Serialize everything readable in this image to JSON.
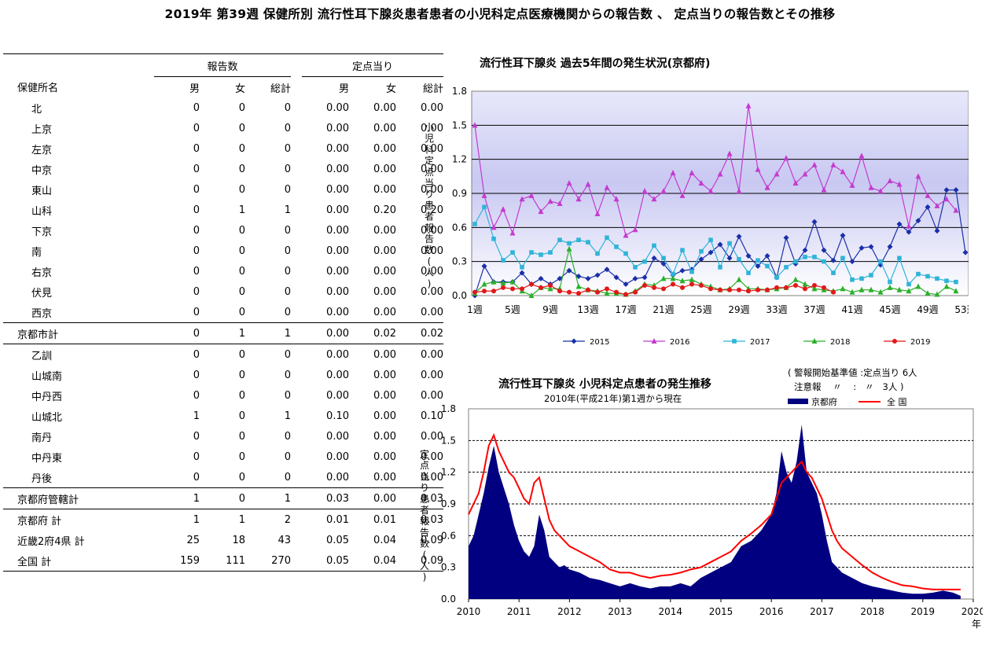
{
  "page_title": "2019年 第39週 保健所別 流行性耳下腺炎患者患者の小児科定点医療機関からの報告数 、 定点当りの報告数とその推移",
  "table": {
    "name_header": "保健所名",
    "group_reports": "報告数",
    "group_rate": "定点当り",
    "sub_headers": [
      "男",
      "女",
      "総計",
      "男",
      "女",
      "総計"
    ],
    "rows": [
      {
        "name": "北",
        "indent": true,
        "sep": false,
        "values": [
          "0",
          "0",
          "0",
          "0.00",
          "0.00",
          "0.00"
        ]
      },
      {
        "name": "上京",
        "indent": true,
        "sep": false,
        "values": [
          "0",
          "0",
          "0",
          "0.00",
          "0.00",
          "0.00"
        ]
      },
      {
        "name": "左京",
        "indent": true,
        "sep": false,
        "values": [
          "0",
          "0",
          "0",
          "0.00",
          "0.00",
          "0.00"
        ]
      },
      {
        "name": "中京",
        "indent": true,
        "sep": false,
        "values": [
          "0",
          "0",
          "0",
          "0.00",
          "0.00",
          "0.00"
        ]
      },
      {
        "name": "東山",
        "indent": true,
        "sep": false,
        "values": [
          "0",
          "0",
          "0",
          "0.00",
          "0.00",
          "0.00"
        ]
      },
      {
        "name": "山科",
        "indent": true,
        "sep": false,
        "values": [
          "0",
          "1",
          "1",
          "0.00",
          "0.20",
          "0.20"
        ]
      },
      {
        "name": "下京",
        "indent": true,
        "sep": false,
        "values": [
          "0",
          "0",
          "0",
          "0.00",
          "0.00",
          "0.00"
        ]
      },
      {
        "name": "南",
        "indent": true,
        "sep": false,
        "values": [
          "0",
          "0",
          "0",
          "0.00",
          "0.00",
          "0.00"
        ]
      },
      {
        "name": "右京",
        "indent": true,
        "sep": false,
        "values": [
          "0",
          "0",
          "0",
          "0.00",
          "0.00",
          "0.00"
        ]
      },
      {
        "name": "伏見",
        "indent": true,
        "sep": false,
        "values": [
          "0",
          "0",
          "0",
          "0.00",
          "0.00",
          "0.00"
        ]
      },
      {
        "name": "西京",
        "indent": true,
        "sep": false,
        "values": [
          "0",
          "0",
          "0",
          "0.00",
          "0.00",
          "0.00"
        ]
      },
      {
        "name": "京都市計",
        "indent": false,
        "sep": true,
        "values": [
          "0",
          "1",
          "1",
          "0.00",
          "0.02",
          "0.02"
        ]
      },
      {
        "name": "乙訓",
        "indent": true,
        "sep": true,
        "values": [
          "0",
          "0",
          "0",
          "0.00",
          "0.00",
          "0.00"
        ]
      },
      {
        "name": "山城南",
        "indent": true,
        "sep": false,
        "values": [
          "0",
          "0",
          "0",
          "0.00",
          "0.00",
          "0.00"
        ]
      },
      {
        "name": "中丹西",
        "indent": true,
        "sep": false,
        "values": [
          "0",
          "0",
          "0",
          "0.00",
          "0.00",
          "0.00"
        ]
      },
      {
        "name": "山城北",
        "indent": true,
        "sep": false,
        "values": [
          "1",
          "0",
          "1",
          "0.10",
          "0.00",
          "0.10"
        ]
      },
      {
        "name": "南丹",
        "indent": true,
        "sep": false,
        "values": [
          "0",
          "0",
          "0",
          "0.00",
          "0.00",
          "0.00"
        ]
      },
      {
        "name": "中丹東",
        "indent": true,
        "sep": false,
        "values": [
          "0",
          "0",
          "0",
          "0.00",
          "0.00",
          "0.00"
        ]
      },
      {
        "name": "丹後",
        "indent": true,
        "sep": false,
        "values": [
          "0",
          "0",
          "0",
          "0.00",
          "0.00",
          "0.00"
        ]
      },
      {
        "name": "京都府管轄計",
        "indent": false,
        "sep": true,
        "values": [
          "1",
          "0",
          "1",
          "0.03",
          "0.00",
          "0.03"
        ]
      },
      {
        "name": "京都府 計",
        "indent": false,
        "sep": true,
        "values": [
          "1",
          "1",
          "2",
          "0.01",
          "0.01",
          "0.03"
        ]
      },
      {
        "name": "近畿2府4県 計",
        "indent": false,
        "sep": false,
        "values": [
          "25",
          "18",
          "43",
          "0.05",
          "0.04",
          "0.09"
        ]
      },
      {
        "name": "全国 計",
        "indent": false,
        "sep": false,
        "values": [
          "159",
          "111",
          "270",
          "0.05",
          "0.04",
          "0.09"
        ]
      }
    ]
  },
  "chart_data": [
    {
      "type": "line",
      "title": "流行性耳下腺炎 過去5年間の発生状況(京都府)",
      "ylabel": "小児科定点当り患者報告数(人)",
      "ylim": [
        0,
        1.8
      ],
      "yticks": [
        "0.0",
        "0.3",
        "0.6",
        "0.9",
        "1.2",
        "1.5",
        "1.8"
      ],
      "xlim": [
        1,
        53
      ],
      "xticks": [
        1,
        5,
        9,
        13,
        17,
        21,
        25,
        29,
        33,
        37,
        41,
        45,
        49,
        53
      ],
      "xtick_suffix": "週",
      "xtick_first_label": "1週",
      "colors": {
        "2015": "#1a2fa8",
        "2016": "#c43bd0",
        "2017": "#2fb4d8",
        "2018": "#2ab02a",
        "2019": "#e21818"
      },
      "series": [
        {
          "name": "2015",
          "values": [
            0.0,
            0.26,
            0.12,
            0.12,
            0.12,
            0.2,
            0.1,
            0.15,
            0.1,
            0.15,
            0.22,
            0.17,
            0.15,
            0.18,
            0.23,
            0.16,
            0.1,
            0.15,
            0.16,
            0.33,
            0.28,
            0.18,
            0.22,
            0.23,
            0.32,
            0.38,
            0.45,
            0.33,
            0.52,
            0.35,
            0.26,
            0.35,
            0.16,
            0.51,
            0.28,
            0.4,
            0.65,
            0.4,
            0.31,
            0.53,
            0.3,
            0.42,
            0.43,
            0.27,
            0.43,
            0.63,
            0.56,
            0.66,
            0.78,
            0.57,
            0.93,
            0.93,
            0.38
          ]
        },
        {
          "name": "2016",
          "values": [
            1.5,
            0.88,
            0.6,
            0.76,
            0.55,
            0.85,
            0.88,
            0.74,
            0.83,
            0.81,
            0.99,
            0.85,
            0.98,
            0.72,
            0.95,
            0.85,
            0.53,
            0.58,
            0.92,
            0.85,
            0.92,
            1.08,
            0.88,
            1.08,
            0.99,
            0.92,
            1.07,
            1.25,
            0.92,
            1.67,
            1.11,
            0.95,
            1.07,
            1.21,
            0.99,
            1.07,
            1.15,
            0.93,
            1.15,
            1.09,
            0.97,
            1.23,
            0.95,
            0.92,
            1.01,
            0.98,
            0.61,
            1.05,
            0.88,
            0.79,
            0.85,
            0.75
          ]
        },
        {
          "name": "2017",
          "values": [
            0.63,
            0.78,
            0.5,
            0.31,
            0.38,
            0.25,
            0.38,
            0.36,
            0.38,
            0.49,
            0.46,
            0.49,
            0.47,
            0.37,
            0.51,
            0.43,
            0.37,
            0.25,
            0.3,
            0.44,
            0.33,
            0.19,
            0.4,
            0.21,
            0.39,
            0.49,
            0.25,
            0.46,
            0.32,
            0.2,
            0.31,
            0.26,
            0.16,
            0.25,
            0.3,
            0.34,
            0.34,
            0.3,
            0.2,
            0.33,
            0.14,
            0.15,
            0.18,
            0.3,
            0.12,
            0.33,
            0.1,
            0.19,
            0.17,
            0.15,
            0.13,
            0.12
          ]
        },
        {
          "name": "2018",
          "values": [
            0.02,
            0.1,
            0.12,
            0.11,
            0.12,
            0.04,
            0.0,
            0.07,
            0.06,
            0.06,
            0.41,
            0.08,
            0.05,
            0.04,
            0.02,
            0.02,
            0.01,
            0.04,
            0.1,
            0.09,
            0.15,
            0.15,
            0.13,
            0.14,
            0.1,
            0.08,
            0.05,
            0.06,
            0.14,
            0.06,
            0.06,
            0.05,
            0.06,
            0.07,
            0.14,
            0.1,
            0.06,
            0.05,
            0.04,
            0.06,
            0.03,
            0.05,
            0.05,
            0.03,
            0.07,
            0.05,
            0.04,
            0.08,
            0.02,
            0.01,
            0.08,
            0.04
          ]
        },
        {
          "name": "2019",
          "values": [
            0.03,
            0.04,
            0.04,
            0.07,
            0.06,
            0.06,
            0.1,
            0.07,
            0.09,
            0.04,
            0.03,
            0.02,
            0.05,
            0.03,
            0.06,
            0.03,
            0.01,
            0.03,
            0.09,
            0.07,
            0.06,
            0.1,
            0.07,
            0.1,
            0.09,
            0.06,
            0.05,
            0.05,
            0.05,
            0.04,
            0.05,
            0.05,
            0.07,
            0.07,
            0.09,
            0.06,
            0.09,
            0.07,
            0.03
          ]
        }
      ],
      "legend_position": "bottom"
    },
    {
      "type": "area",
      "title": "流行性耳下腺炎 小児科定点患者の発生推移",
      "subtitle": "2010年(平成21年)第1週から現在",
      "ylabel": "定点当り患者報告数(人)",
      "ylim": [
        0,
        1.8
      ],
      "yticks": [
        "0.0",
        "0.3",
        "0.6",
        "0.9",
        "1.2",
        "1.5",
        "1.8"
      ],
      "xlim": [
        2010,
        2020
      ],
      "xticks": [
        "2010",
        "2011",
        "2012",
        "2013",
        "2014",
        "2015",
        "2016",
        "2017",
        "2018",
        "2019",
        "2020"
      ],
      "x_unit_label": "年",
      "notes": [
        "( 警報開始基準値 :定点当り 6人",
        "注意報    〃    :   〃   3人 )"
      ],
      "legend": [
        {
          "name": "京都府",
          "color": "#000080",
          "kind": "area"
        },
        {
          "name": "全 国",
          "color": "#ff0000",
          "kind": "line"
        }
      ],
      "series": [
        {
          "name": "京都府",
          "x": [
            2010.0,
            2010.1,
            2010.2,
            2010.3,
            2010.4,
            2010.5,
            2010.6,
            2010.7,
            2010.8,
            2010.9,
            2011.0,
            2011.1,
            2011.2,
            2011.3,
            2011.4,
            2011.5,
            2011.6,
            2011.7,
            2011.8,
            2011.9,
            2012.0,
            2012.2,
            2012.4,
            2012.6,
            2012.8,
            2013.0,
            2013.2,
            2013.4,
            2013.6,
            2013.8,
            2014.0,
            2014.2,
            2014.4,
            2014.6,
            2014.8,
            2015.0,
            2015.2,
            2015.4,
            2015.6,
            2015.8,
            2016.0,
            2016.1,
            2016.2,
            2016.3,
            2016.4,
            2016.5,
            2016.6,
            2016.7,
            2016.8,
            2016.9,
            2017.0,
            2017.1,
            2017.2,
            2017.3,
            2017.4,
            2017.6,
            2017.8,
            2018.0,
            2018.2,
            2018.4,
            2018.6,
            2018.8,
            2019.0,
            2019.2,
            2019.4,
            2019.6,
            2019.75
          ],
          "values": [
            0.5,
            0.6,
            0.8,
            1.0,
            1.25,
            1.45,
            1.2,
            1.05,
            0.9,
            0.7,
            0.55,
            0.45,
            0.4,
            0.5,
            0.8,
            0.65,
            0.4,
            0.35,
            0.3,
            0.32,
            0.28,
            0.25,
            0.2,
            0.18,
            0.15,
            0.12,
            0.15,
            0.12,
            0.1,
            0.12,
            0.12,
            0.15,
            0.12,
            0.2,
            0.25,
            0.3,
            0.35,
            0.5,
            0.55,
            0.65,
            0.8,
            1.0,
            1.4,
            1.2,
            1.1,
            1.3,
            1.65,
            1.2,
            1.1,
            1.0,
            0.8,
            0.55,
            0.35,
            0.3,
            0.25,
            0.2,
            0.15,
            0.12,
            0.1,
            0.08,
            0.06,
            0.05,
            0.05,
            0.06,
            0.08,
            0.06,
            0.03
          ]
        },
        {
          "name": "全 国",
          "x": [
            2010.0,
            2010.1,
            2010.2,
            2010.3,
            2010.4,
            2010.5,
            2010.6,
            2010.7,
            2010.8,
            2010.9,
            2011.0,
            2011.1,
            2011.2,
            2011.3,
            2011.4,
            2011.5,
            2011.6,
            2011.7,
            2011.8,
            2011.9,
            2012.0,
            2012.2,
            2012.4,
            2012.6,
            2012.8,
            2013.0,
            2013.2,
            2013.4,
            2013.6,
            2013.8,
            2014.0,
            2014.2,
            2014.4,
            2014.6,
            2014.8,
            2015.0,
            2015.2,
            2015.4,
            2015.6,
            2015.8,
            2016.0,
            2016.1,
            2016.2,
            2016.3,
            2016.4,
            2016.5,
            2016.6,
            2016.7,
            2016.8,
            2016.9,
            2017.0,
            2017.1,
            2017.2,
            2017.3,
            2017.4,
            2017.6,
            2017.8,
            2018.0,
            2018.2,
            2018.4,
            2018.6,
            2018.8,
            2019.0,
            2019.2,
            2019.4,
            2019.6,
            2019.75
          ],
          "values": [
            0.8,
            0.9,
            1.0,
            1.2,
            1.45,
            1.55,
            1.4,
            1.3,
            1.2,
            1.15,
            1.05,
            0.95,
            0.9,
            1.1,
            1.15,
            0.95,
            0.75,
            0.65,
            0.6,
            0.55,
            0.5,
            0.45,
            0.4,
            0.35,
            0.28,
            0.25,
            0.25,
            0.22,
            0.2,
            0.22,
            0.23,
            0.25,
            0.28,
            0.3,
            0.35,
            0.4,
            0.45,
            0.55,
            0.62,
            0.7,
            0.8,
            0.95,
            1.1,
            1.15,
            1.2,
            1.25,
            1.3,
            1.2,
            1.15,
            1.05,
            0.95,
            0.8,
            0.65,
            0.55,
            0.48,
            0.4,
            0.32,
            0.25,
            0.2,
            0.16,
            0.13,
            0.12,
            0.1,
            0.09,
            0.09,
            0.09,
            0.09
          ]
        }
      ]
    }
  ]
}
